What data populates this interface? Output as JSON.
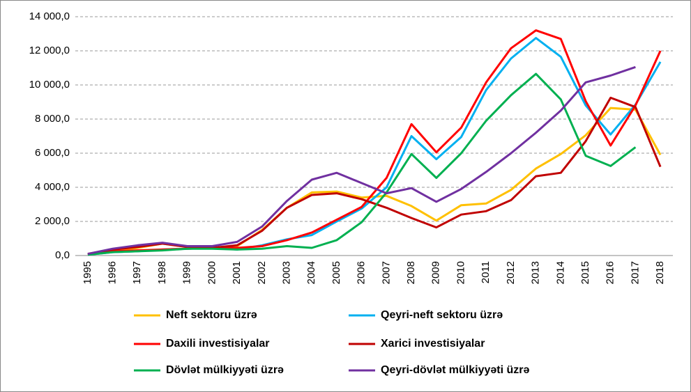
{
  "chart_data": {
    "type": "line",
    "categories": [
      "1995",
      "1996",
      "1997",
      "1998",
      "1999",
      "2000",
      "2001",
      "2002",
      "2003",
      "2004",
      "2005",
      "2006",
      "2007",
      "2008",
      "2009",
      "2010",
      "2011",
      "2012",
      "2013",
      "2014",
      "2015",
      "2016",
      "2017",
      "2018"
    ],
    "series": [
      {
        "name": "Neft sektoru üzrə",
        "color": "#FFC000",
        "values": [
          100,
          250,
          450,
          700,
          500,
          450,
          550,
          1500,
          2800,
          3700,
          3750,
          3400,
          3500,
          2900,
          2050,
          2950,
          3050,
          3850,
          5100,
          5950,
          7050,
          8650,
          8550,
          5900
        ]
      },
      {
        "name": "Qeyri-neft sektoru üzrə",
        "color": "#00B0F0",
        "values": [
          50,
          200,
          250,
          350,
          400,
          450,
          350,
          600,
          950,
          1200,
          2000,
          2750,
          4000,
          7000,
          5650,
          6950,
          9700,
          11550,
          12750,
          11650,
          8800,
          7100,
          8850,
          11350
        ]
      },
      {
        "name": "Daxili investisiyalar",
        "color": "#FF0000",
        "values": [
          50,
          250,
          300,
          350,
          400,
          450,
          450,
          550,
          900,
          1350,
          2100,
          2850,
          4550,
          7700,
          6050,
          7500,
          10150,
          12150,
          13200,
          12700,
          9050,
          6450,
          8800,
          12000
        ]
      },
      {
        "name": "Xarici investisiyalar",
        "color": "#C00000",
        "values": [
          100,
          350,
          500,
          700,
          500,
          450,
          600,
          1450,
          2800,
          3550,
          3650,
          3300,
          2800,
          2200,
          1650,
          2400,
          2600,
          3250,
          4650,
          4850,
          6700,
          9250,
          8700,
          5200
        ]
      },
      {
        "name": "Dövlət mülkiyyəti üzrə",
        "color": "#00B050",
        "values": [
          50,
          200,
          250,
          300,
          400,
          400,
          350,
          400,
          550,
          450,
          900,
          1950,
          3700,
          5950,
          4550,
          6000,
          7900,
          9400,
          10650,
          9150,
          5850,
          5250,
          6350,
          null
        ]
      },
      {
        "name": "Qeyri-dövlət mülkiyyəti üzrə",
        "color": "#7030A0",
        "values": [
          100,
          400,
          600,
          750,
          550,
          550,
          800,
          1700,
          3200,
          4450,
          4850,
          4250,
          3650,
          3950,
          3150,
          3900,
          4900,
          6000,
          7200,
          8500,
          10150,
          10550,
          11050,
          null
        ]
      }
    ],
    "ylim": [
      0,
      14000
    ],
    "yticks": [
      {
        "value": 0,
        "label": "0,0"
      },
      {
        "value": 2000,
        "label": "2 000,0"
      },
      {
        "value": 4000,
        "label": "4 000,0"
      },
      {
        "value": 6000,
        "label": "6 000,0"
      },
      {
        "value": 8000,
        "label": "8 000,0"
      },
      {
        "value": 10000,
        "label": "10 000,0"
      },
      {
        "value": 12000,
        "label": "12 000,0"
      },
      {
        "value": 14000,
        "label": "14 000,0"
      }
    ],
    "grid": true
  }
}
